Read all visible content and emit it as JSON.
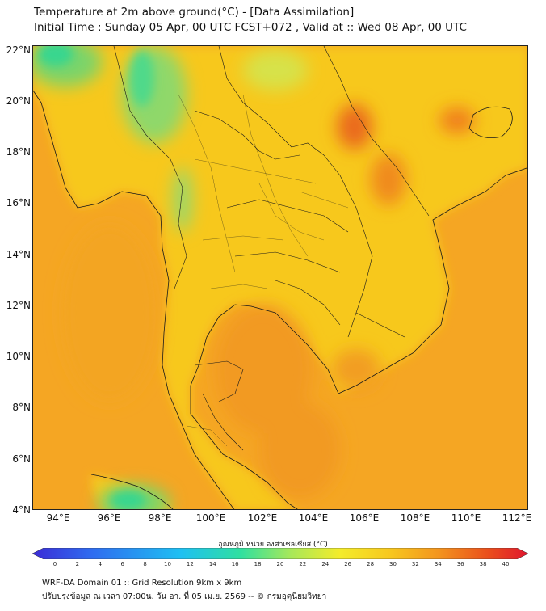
{
  "header": {
    "title_line1": "Temperature at 2m above ground(°C) - [Data Assimilation]",
    "title_line2": "Initial Time : Sunday 05 Apr, 00 UTC FCST+072 , Valid at :: Wed 08 Apr, 00 UTC"
  },
  "map": {
    "lat_labels": [
      "22°N",
      "20°N",
      "18°N",
      "16°N",
      "14°N",
      "12°N",
      "10°N",
      "8°N",
      "6°N",
      "4°N"
    ],
    "lon_labels": [
      "94°E",
      "96°E",
      "98°E",
      "100°E",
      "102°E",
      "104°E",
      "106°E",
      "108°E",
      "110°E",
      "112°E"
    ],
    "field_colors": {
      "ocean": "#f5a623",
      "land": "#f7c81e",
      "cool": "#8fd86b",
      "cold": "#38d68f",
      "warm": "#f08a1c",
      "hot": "#e9661a",
      "border": "#1a1a1a"
    }
  },
  "legend": {
    "title": "อุณหภูมิ หน่วย องศาเซลเซียส (°C)",
    "ticks": [
      "0",
      "2",
      "4",
      "6",
      "8",
      "10",
      "12",
      "14",
      "16",
      "18",
      "20",
      "22",
      "24",
      "26",
      "28",
      "30",
      "32",
      "34",
      "36",
      "38",
      "40"
    ],
    "gradient": [
      "#3b2bd6",
      "#2f6cf0",
      "#1ec0f2",
      "#2fe0a0",
      "#a6e85a",
      "#f4ec2a",
      "#f7c81e",
      "#f3941e",
      "#ea4e1c",
      "#e0162e"
    ]
  },
  "footer": {
    "line1": "WRF-DA Domain 01 :: Grid Resolution 9km x 9km",
    "line2": "ปรับปรุงข้อมูล ณ เวลา 07:00น. วัน อา. ที่ 05 เม.ย. 2569 -- © กรมอุตุนิยมวิทยา"
  }
}
